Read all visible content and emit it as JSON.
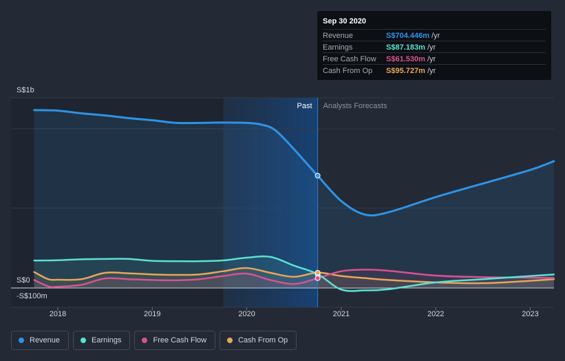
{
  "tooltip": {
    "date": "Sep 30 2020",
    "rows": [
      {
        "label": "Revenue",
        "value": "S$704.446m",
        "unit": " /yr",
        "color": "#2e93e6"
      },
      {
        "label": "Earnings",
        "value": "S$87.183m",
        "unit": " /yr",
        "color": "#5ce1d2"
      },
      {
        "label": "Free Cash Flow",
        "value": "S$61.530m",
        "unit": " /yr",
        "color": "#d8538f"
      },
      {
        "label": "Cash From Op",
        "value": "S$95.727m",
        "unit": " /yr",
        "color": "#e8a65a"
      }
    ]
  },
  "legend": [
    {
      "label": "Revenue",
      "color": "#2e93e6"
    },
    {
      "label": "Earnings",
      "color": "#5ce1d2"
    },
    {
      "label": "Free Cash Flow",
      "color": "#d8538f"
    },
    {
      "label": "Cash From Op",
      "color": "#e8a65a"
    }
  ],
  "chart_data": {
    "type": "line",
    "title": "",
    "xlabel": "",
    "ylabel": "",
    "y_unit": "S$ millions",
    "ylim": [
      -100,
      1190
    ],
    "y_tick_labels": [
      {
        "value": 1000,
        "label": "S$1b"
      },
      {
        "value": 0,
        "label": "S$0"
      },
      {
        "value": -100,
        "label": "-S$100m"
      }
    ],
    "xlim": [
      2017.75,
      2023.25
    ],
    "x_tick_labels": [
      "2018",
      "2019",
      "2020",
      "2021",
      "2022",
      "2023"
    ],
    "x_ticks": [
      2018,
      2019,
      2020,
      2021,
      2022,
      2023
    ],
    "past_label": "Past",
    "forecast_label": "Analysts Forecasts",
    "divider_x": 2020.75,
    "highlight_start": 2019.75,
    "grid": true,
    "series": [
      {
        "name": "Revenue",
        "color": "#2e93e6",
        "x": [
          2017.75,
          2018.0,
          2018.25,
          2018.5,
          2018.75,
          2019.0,
          2019.25,
          2019.5,
          2019.75,
          2020.0,
          2020.15,
          2020.3,
          2020.5,
          2020.75,
          2021.0,
          2021.25,
          2021.5,
          2022.0,
          2022.5,
          2023.0,
          2023.25
        ],
        "y": [
          1115,
          1112,
          1095,
          1082,
          1065,
          1052,
          1035,
          1035,
          1037,
          1035,
          1025,
          990,
          870,
          704,
          545,
          460,
          475,
          570,
          655,
          740,
          795
        ]
      },
      {
        "name": "Earnings",
        "color": "#5ce1d2",
        "x": [
          2017.75,
          2018.0,
          2018.25,
          2018.5,
          2018.75,
          2019.0,
          2019.25,
          2019.5,
          2019.75,
          2020.0,
          2020.25,
          2020.5,
          2020.75,
          2021.0,
          2021.25,
          2021.5,
          2022.0,
          2022.5,
          2023.0,
          2023.25
        ],
        "y": [
          172,
          174,
          180,
          182,
          182,
          170,
          168,
          168,
          173,
          190,
          195,
          140,
          87,
          -10,
          -15,
          -8,
          35,
          55,
          75,
          85
        ]
      },
      {
        "name": "Free Cash Flow",
        "color": "#d8538f",
        "x": [
          2017.75,
          2017.9,
          2018.0,
          2018.25,
          2018.5,
          2018.75,
          2019.0,
          2019.25,
          2019.5,
          2019.75,
          2020.0,
          2020.25,
          2020.5,
          2020.75,
          2021.0,
          2021.25,
          2021.5,
          2022.0,
          2022.5,
          2023.0,
          2023.25
        ],
        "y": [
          50,
          10,
          8,
          20,
          60,
          55,
          50,
          48,
          55,
          75,
          90,
          50,
          25,
          61,
          105,
          115,
          108,
          78,
          68,
          65,
          62
        ]
      },
      {
        "name": "Cash From Op",
        "color": "#e8a65a",
        "x": [
          2017.75,
          2017.9,
          2018.0,
          2018.25,
          2018.5,
          2018.75,
          2019.0,
          2019.25,
          2019.5,
          2019.75,
          2020.0,
          2020.25,
          2020.5,
          2020.75,
          2021.0,
          2021.25,
          2021.5,
          2022.0,
          2022.5,
          2023.0,
          2023.25
        ],
        "y": [
          100,
          55,
          52,
          55,
          95,
          92,
          85,
          82,
          85,
          105,
          125,
          95,
          70,
          96,
          75,
          62,
          50,
          35,
          30,
          45,
          55
        ]
      }
    ],
    "highlight_points": [
      {
        "series": "Revenue",
        "x": 2020.75,
        "y": 704.446
      },
      {
        "series": "Earnings",
        "x": 2020.75,
        "y": 87.183
      },
      {
        "series": "Free Cash Flow",
        "x": 2020.75,
        "y": 61.53
      },
      {
        "series": "Cash From Op",
        "x": 2020.75,
        "y": 95.727
      }
    ]
  }
}
